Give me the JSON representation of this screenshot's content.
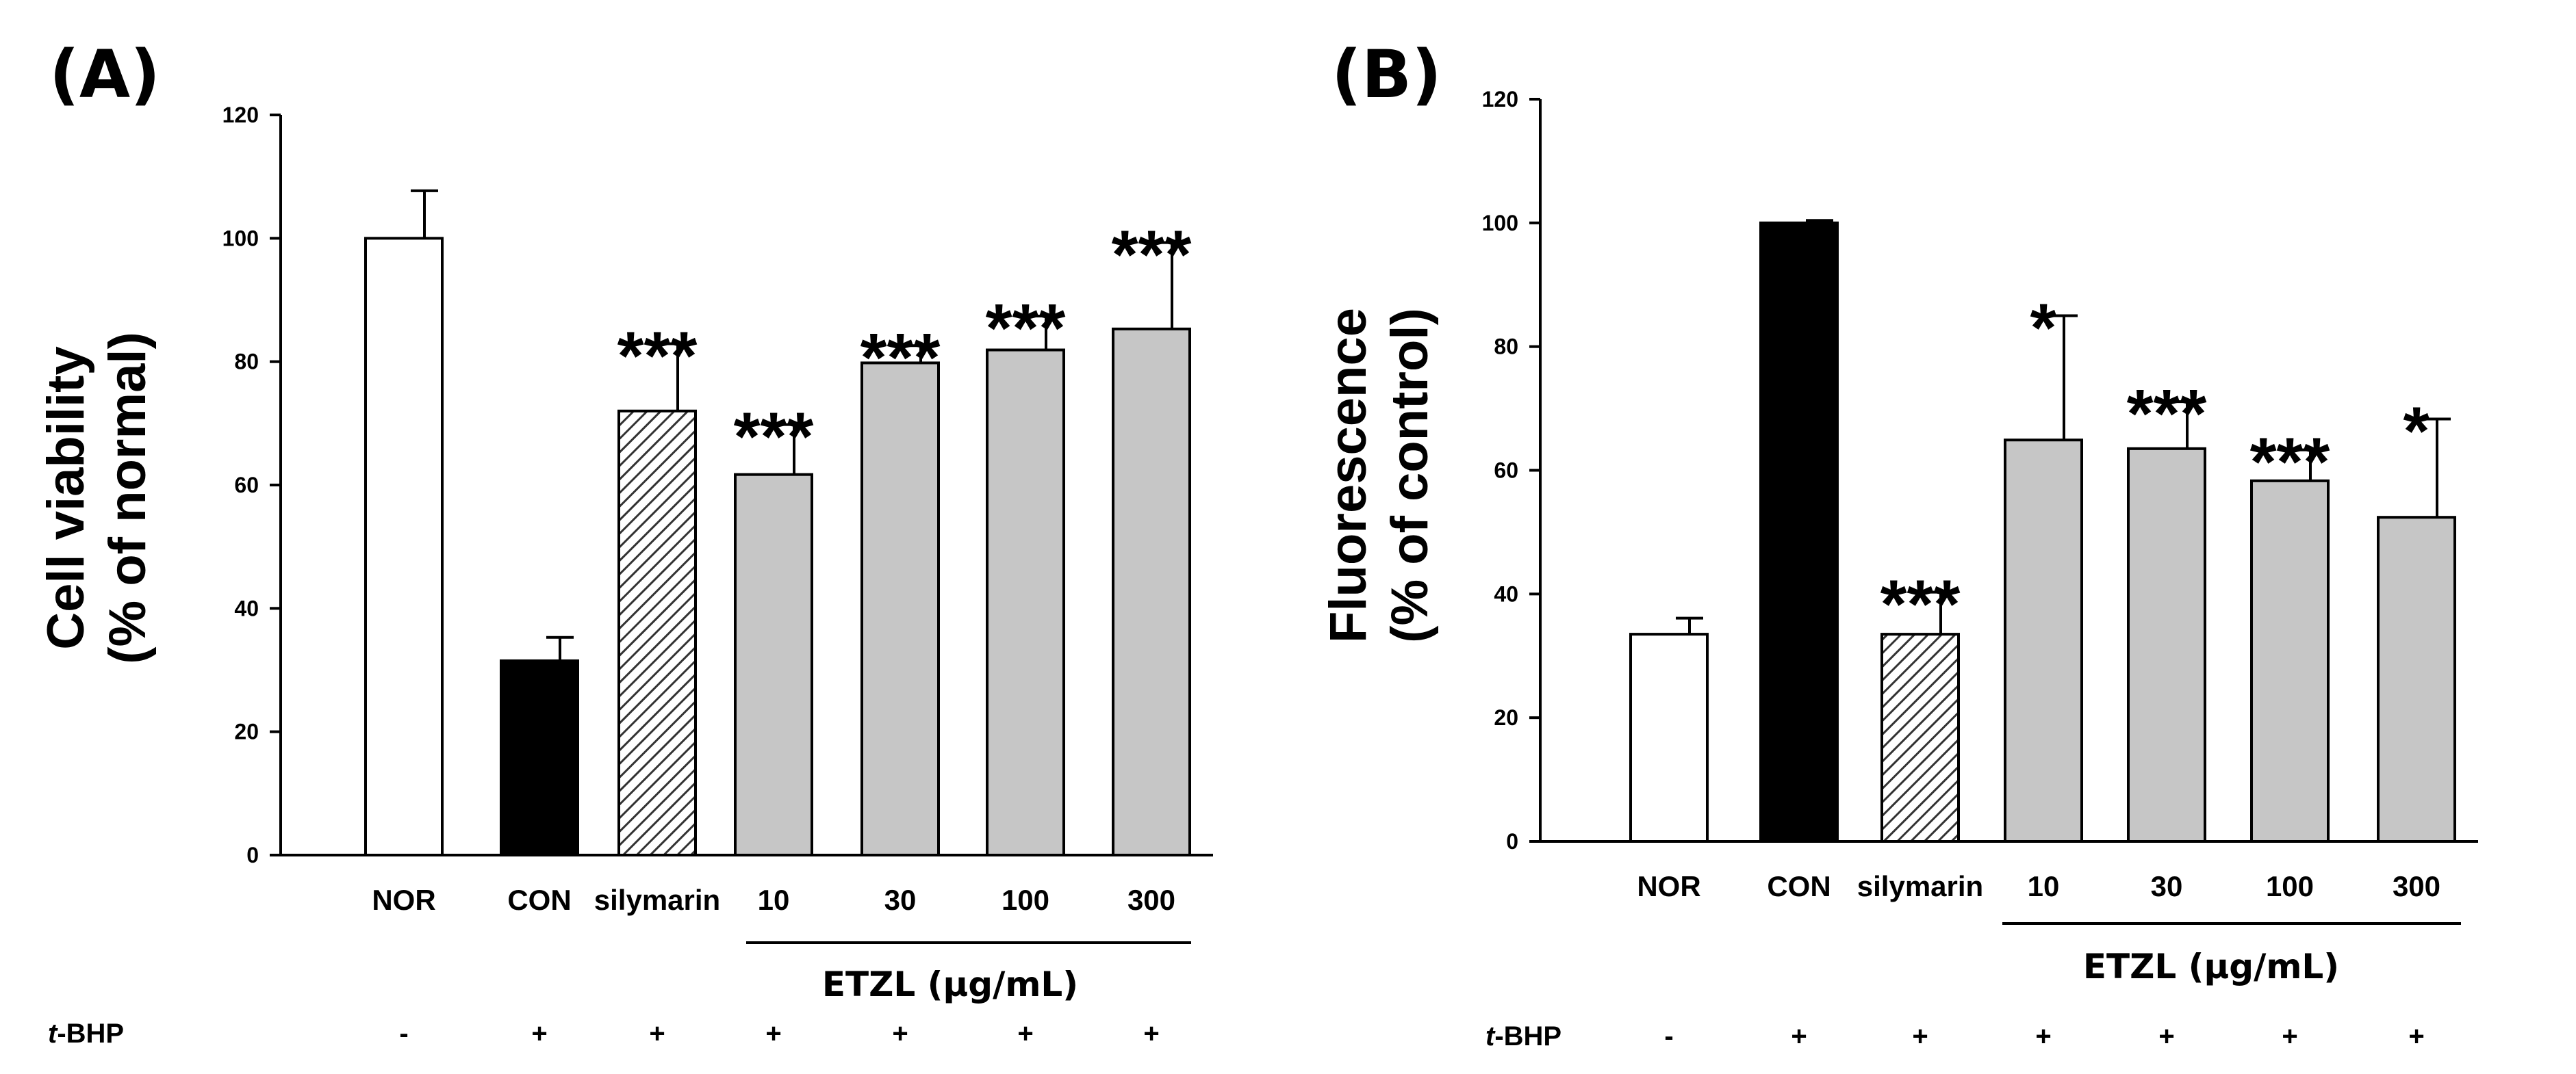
{
  "chart_data": [
    {
      "type": "bar",
      "panel": "(A)",
      "ylabel_line1": "Cell viability",
      "ylabel_line2": "(% of normal)",
      "ylim": [
        0,
        120
      ],
      "yticks": [
        0,
        20,
        40,
        60,
        80,
        100,
        120
      ],
      "categories": [
        "NOR",
        "CON",
        "silymarin",
        "10",
        "30",
        "100",
        "300"
      ],
      "values": [
        100,
        31.5,
        72,
        61.7,
        79.8,
        81.9,
        85.3
      ],
      "errors": [
        7.7,
        3.8,
        10.9,
        8.1,
        2.8,
        5.5,
        14
      ],
      "significance": [
        "",
        "",
        "***",
        "***",
        "***",
        "***",
        "***"
      ],
      "fills": [
        "white",
        "black",
        "hatched",
        "gray",
        "gray",
        "gray",
        "gray"
      ],
      "group_label": "ETZL (μg/mL)",
      "treatment_label": "t-BHP",
      "treatment": [
        "-",
        "+",
        "+",
        "+",
        "+",
        "+",
        "+"
      ]
    },
    {
      "type": "bar",
      "panel": "(B)",
      "ylabel_line1": "Fluorescence",
      "ylabel_line2": "(% of control)",
      "ylim": [
        0,
        120
      ],
      "yticks": [
        0,
        20,
        40,
        60,
        80,
        100,
        120
      ],
      "categories": [
        "NOR",
        "CON",
        "silymarin",
        "10",
        "30",
        "100",
        "300"
      ],
      "values": [
        33.5,
        100,
        33.5,
        64.9,
        63.5,
        58.3,
        52.4
      ],
      "errors": [
        2.6,
        0.4,
        6.8,
        20.1,
        7.6,
        5,
        15.9
      ],
      "significance": [
        "",
        "",
        "***",
        "*",
        "***",
        "***",
        "*"
      ],
      "fills": [
        "white",
        "black",
        "hatched",
        "gray",
        "gray",
        "gray",
        "gray"
      ],
      "group_label": "ETZL (μg/mL)",
      "treatment_label": "t-BHP",
      "treatment": [
        "-",
        "+",
        "+",
        "+",
        "+",
        "+",
        "+"
      ]
    }
  ]
}
